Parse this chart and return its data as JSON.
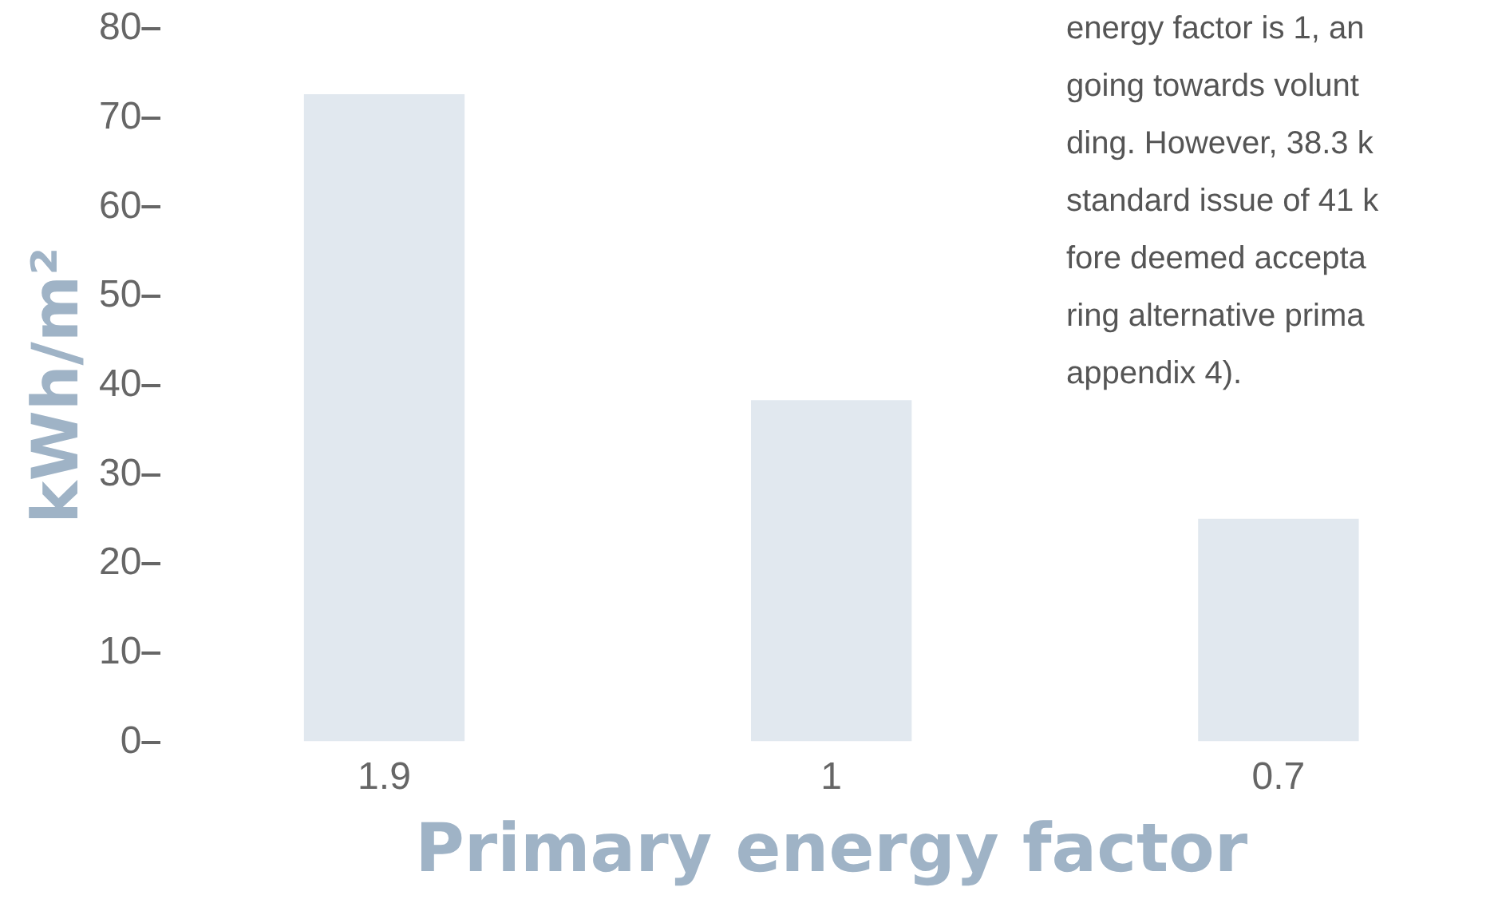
{
  "chart_data": {
    "type": "bar",
    "xlabel": "Primary energy factor",
    "ylabel": "kWh/m²",
    "categories": [
      "1.9",
      "1",
      "0.7"
    ],
    "values": [
      72.6,
      38.3,
      25
    ],
    "color": "#e1e8ef",
    "ylim": [
      0,
      80
    ],
    "yticks": [
      0,
      10,
      20,
      30,
      40,
      50,
      60,
      70,
      80
    ],
    "grid": false,
    "legend": false,
    "annotations": [
      "energy factor is 1, an\ngoing towards volunt\nding. However, 38.3 k\nstandard issue of 41 k\nfore deemed accepta\nring alternative prima\nappendix 4)."
    ]
  }
}
